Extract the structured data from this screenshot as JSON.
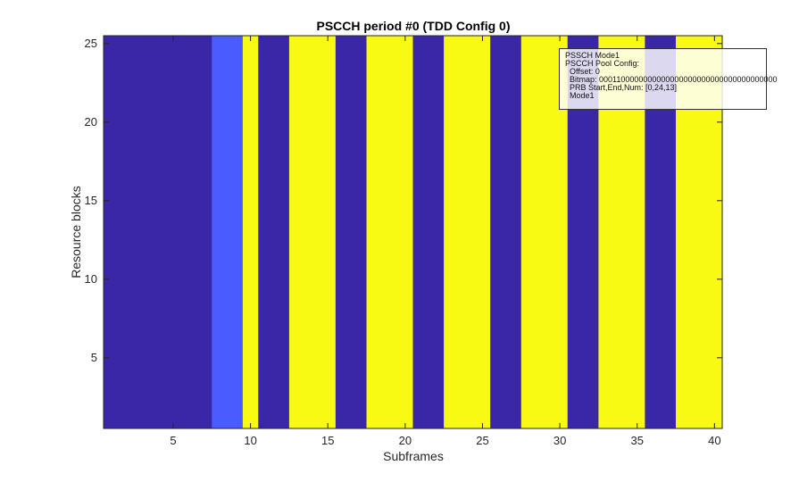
{
  "chart_data": {
    "type": "heatmap",
    "title": "PSCCH period #0 (TDD Config 0)",
    "xlabel": "Subframes",
    "ylabel": "Resource blocks",
    "xlim": [
      0.5,
      40.5
    ],
    "ylim": [
      0.5,
      25.5
    ],
    "xticks": [
      5,
      10,
      15,
      20,
      25,
      30,
      35,
      40
    ],
    "yticks": [
      5,
      10,
      15,
      20,
      25
    ],
    "xtick_labels": [
      "5",
      "10",
      "15",
      "20",
      "25",
      "30",
      "35",
      "40"
    ],
    "ytick_labels": [
      "5",
      "10",
      "15",
      "20",
      "25"
    ],
    "grid": false,
    "subframe_values": [
      1,
      1,
      1,
      1,
      1,
      1,
      1,
      2,
      2,
      3,
      1,
      1,
      3,
      3,
      3,
      1,
      1,
      3,
      3,
      3,
      1,
      1,
      3,
      3,
      3,
      1,
      1,
      3,
      3,
      3,
      1,
      1,
      3,
      3,
      3,
      1,
      1,
      3,
      3,
      3
    ],
    "value_colors": {
      "1": "#3a27a8",
      "2": "#4a5cff",
      "3": "#f8fa13"
    }
  },
  "legend": {
    "lines": [
      "PSSCH Mode1",
      "PSCCH Pool Config:",
      "Offset: 0",
      "Bitmap: 0001100000000000000000000000000000000000",
      "PRB Start,End,Num: [0,24,13]",
      "Mode1"
    ]
  }
}
